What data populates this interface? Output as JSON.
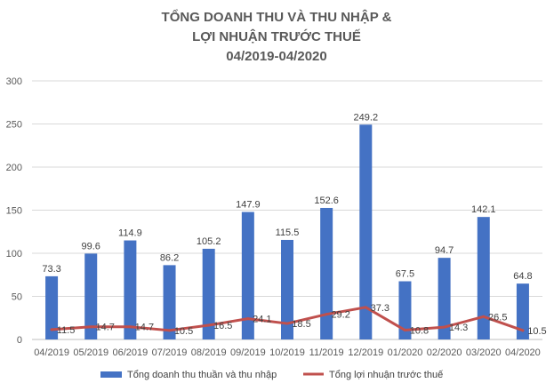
{
  "chart_data": {
    "type": "bar",
    "title_lines": [
      "TỔNG DOANH THU VÀ THU NHẬP &",
      "LỢI NHUẬN TRƯỚC THUẾ",
      "04/2019-04/2020"
    ],
    "categories": [
      "04/2019",
      "05/2019",
      "06/2019",
      "07/2019",
      "08/2019",
      "09/2019",
      "10/2019",
      "11/2019",
      "12/2019",
      "01/2020",
      "02/2020",
      "03/2020",
      "04/2020"
    ],
    "series": [
      {
        "name": "Tổng doanh thu thuần và thu nhập",
        "type": "bar",
        "color": "#4472c4",
        "values": [
          73.3,
          99.6,
          114.9,
          86.2,
          105.2,
          147.9,
          115.5,
          152.6,
          249.2,
          67.5,
          94.7,
          142.1,
          64.8
        ],
        "labels": [
          "73.3",
          "99.6",
          "114.9",
          "86.2",
          "105.2",
          "147.9",
          "115.5",
          "152.6",
          "249.2",
          "67.5",
          "94.7",
          "142.1",
          "64.8"
        ]
      },
      {
        "name": "Tổng lợi nhuận trước thuế",
        "type": "line",
        "color": "#c0504d",
        "values": [
          11.5,
          14.7,
          14.7,
          10.5,
          16.5,
          24.1,
          18.5,
          29.2,
          37.3,
          10.8,
          14.3,
          26.5,
          10.5
        ],
        "labels": [
          "11.5",
          "14.7",
          "14.7",
          "10.5",
          "16.5",
          "24.1",
          "18.5",
          "29.2",
          "37.3",
          "10.8",
          "14.3",
          "26.5",
          "10.5"
        ]
      }
    ],
    "ylim": [
      0,
      300
    ],
    "yticks": [
      "0",
      "50",
      "100",
      "150",
      "200",
      "250",
      "300"
    ],
    "grid": true,
    "legend": "bottom"
  }
}
